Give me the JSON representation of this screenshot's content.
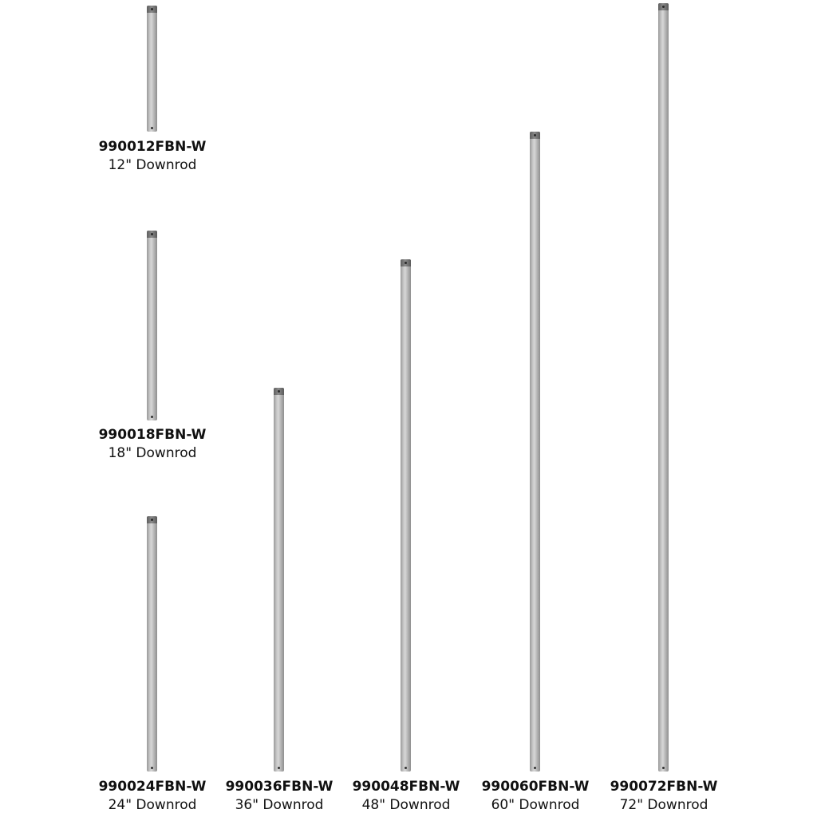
{
  "products": [
    {
      "sku": "990012FBN-W",
      "description": "12\" Downrod"
    },
    {
      "sku": "990018FBN-W",
      "description": "18\" Downrod"
    },
    {
      "sku": "990024FBN-W",
      "description": "24\" Downrod"
    },
    {
      "sku": "990036FBN-W",
      "description": "36\" Downrod"
    },
    {
      "sku": "990048FBN-W",
      "description": "48\" Downrod"
    },
    {
      "sku": "990060FBN-W",
      "description": "60\" Downrod"
    },
    {
      "sku": "990072FBN-W",
      "description": "72\" Downrod"
    }
  ]
}
